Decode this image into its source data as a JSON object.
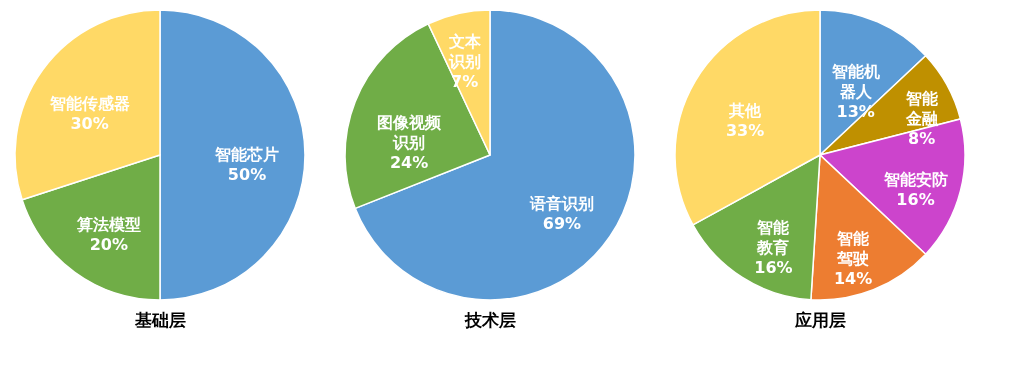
{
  "chart_data": [
    {
      "type": "pie",
      "title": "基础层",
      "categories": [
        "智能芯片",
        "算法模型",
        "智能传感器"
      ],
      "values": [
        50,
        20,
        30
      ],
      "colors": [
        "#5b9bd5",
        "#70ad47",
        "#ffd966"
      ],
      "value_labels": [
        "50%",
        "20%",
        "30%"
      ]
    },
    {
      "type": "pie",
      "title": "技术层",
      "categories": [
        "语音识别",
        "图像视频识别",
        "文本识别"
      ],
      "values": [
        69,
        24,
        7
      ],
      "colors": [
        "#5b9bd5",
        "#70ad47",
        "#ffd966"
      ],
      "value_labels": [
        "69%",
        "24%",
        "7%"
      ]
    },
    {
      "type": "pie",
      "title": "应用层",
      "categories": [
        "智能机器人",
        "智能金融",
        "智能安防",
        "智能驾驶",
        "智能教育",
        "其他"
      ],
      "values": [
        13,
        8,
        16,
        14,
        16,
        33
      ],
      "colors": [
        "#5b9bd5",
        "#bf9000",
        "#cc44cc",
        "#ed7d31",
        "#70ad47",
        "#ffd966"
      ],
      "value_labels": [
        "13%",
        "8%",
        "16%",
        "14%",
        "16%",
        "33%"
      ]
    }
  ]
}
